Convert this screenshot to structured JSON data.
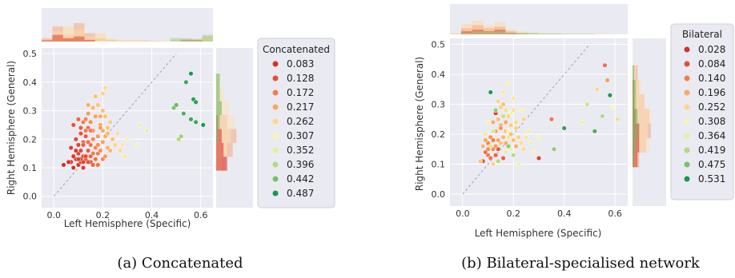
{
  "chart_data": [
    {
      "type": "scatter",
      "xlabel": "Left Hemisphere (Specific)",
      "ylabel": "Right Hemisphere (General)",
      "xlim": [
        -0.05,
        0.65
      ],
      "ylim": [
        -0.04,
        0.52
      ],
      "xticks": [
        "0.0",
        "0.2",
        "0.4",
        "0.6"
      ],
      "yticks": [
        "0.0",
        "0.1",
        "0.2",
        "0.3",
        "0.4",
        "0.5"
      ],
      "xtick_values": [
        0,
        0.2,
        0.4,
        0.6
      ],
      "ytick_values": [
        0,
        0.1,
        0.2,
        0.3,
        0.4,
        0.5
      ],
      "diagonal": [
        [
          0,
          0
        ],
        [
          0.5,
          0.5
        ]
      ],
      "legend_title": "Concatenated",
      "legend_labels": [
        "0.083",
        "0.128",
        "0.172",
        "0.217",
        "0.262",
        "0.307",
        "0.352",
        "0.396",
        "0.442",
        "0.487"
      ],
      "legend_colors": [
        "#d73027",
        "#e44f35",
        "#f47d4a",
        "#fbaa5d",
        "#fdd884",
        "#f9f5b0",
        "#e2f09a",
        "#b2db7c",
        "#73c264",
        "#1a9850"
      ],
      "caption": "(a) Concatenated",
      "points": [
        [
          0.04,
          0.11,
          0.083
        ],
        [
          0.07,
          0.12,
          0.09
        ],
        [
          0.08,
          0.1,
          0.083
        ],
        [
          0.09,
          0.13,
          0.1
        ],
        [
          0.1,
          0.15,
          0.11
        ],
        [
          0.1,
          0.11,
          0.09
        ],
        [
          0.11,
          0.12,
          0.1
        ],
        [
          0.12,
          0.14,
          0.12
        ],
        [
          0.12,
          0.1,
          0.1
        ],
        [
          0.13,
          0.13,
          0.13
        ],
        [
          0.14,
          0.16,
          0.14
        ],
        [
          0.15,
          0.12,
          0.12
        ],
        [
          0.09,
          0.2,
          0.12
        ],
        [
          0.1,
          0.18,
          0.11
        ],
        [
          0.11,
          0.22,
          0.13
        ],
        [
          0.12,
          0.19,
          0.15
        ],
        [
          0.13,
          0.21,
          0.14
        ],
        [
          0.14,
          0.24,
          0.16
        ],
        [
          0.15,
          0.18,
          0.16
        ],
        [
          0.16,
          0.2,
          0.18
        ],
        [
          0.08,
          0.25,
          0.13
        ],
        [
          0.1,
          0.27,
          0.15
        ],
        [
          0.12,
          0.26,
          0.17
        ],
        [
          0.13,
          0.23,
          0.17
        ],
        [
          0.15,
          0.26,
          0.19
        ],
        [
          0.16,
          0.23,
          0.19
        ],
        [
          0.17,
          0.17,
          0.18
        ],
        [
          0.18,
          0.21,
          0.2
        ],
        [
          0.18,
          0.15,
          0.17
        ],
        [
          0.19,
          0.25,
          0.21
        ],
        [
          0.2,
          0.19,
          0.21
        ],
        [
          0.2,
          0.13,
          0.18
        ],
        [
          0.17,
          0.13,
          0.16
        ],
        [
          0.16,
          0.11,
          0.15
        ],
        [
          0.18,
          0.11,
          0.16
        ],
        [
          0.21,
          0.14,
          0.2
        ],
        [
          0.22,
          0.17,
          0.22
        ],
        [
          0.19,
          0.28,
          0.22
        ],
        [
          0.21,
          0.28,
          0.24
        ],
        [
          0.18,
          0.32,
          0.24
        ],
        [
          0.16,
          0.31,
          0.23
        ],
        [
          0.2,
          0.36,
          0.26
        ],
        [
          0.21,
          0.38,
          0.27
        ],
        [
          0.14,
          0.32,
          0.22
        ],
        [
          0.17,
          0.35,
          0.24
        ],
        [
          0.22,
          0.22,
          0.23
        ],
        [
          0.23,
          0.26,
          0.25
        ],
        [
          0.24,
          0.2,
          0.24
        ],
        [
          0.11,
          0.13,
          0.11
        ],
        [
          0.13,
          0.14,
          0.12
        ],
        [
          0.14,
          0.12,
          0.13
        ],
        [
          0.12,
          0.18,
          0.14
        ],
        [
          0.11,
          0.24,
          0.14
        ],
        [
          0.14,
          0.19,
          0.16
        ],
        [
          0.16,
          0.15,
          0.17
        ],
        [
          0.15,
          0.14,
          0.15
        ],
        [
          0.18,
          0.18,
          0.19
        ],
        [
          0.19,
          0.16,
          0.19
        ],
        [
          0.2,
          0.23,
          0.22
        ],
        [
          0.13,
          0.27,
          0.18
        ],
        [
          0.14,
          0.29,
          0.2
        ],
        [
          0.23,
          0.16,
          0.23
        ],
        [
          0.25,
          0.18,
          0.26
        ],
        [
          0.26,
          0.22,
          0.27
        ],
        [
          0.27,
          0.16,
          0.27
        ],
        [
          0.29,
          0.14,
          0.28
        ],
        [
          0.28,
          0.18,
          0.29
        ],
        [
          0.3,
          0.2,
          0.3
        ],
        [
          0.34,
          0.18,
          0.32
        ],
        [
          0.35,
          0.25,
          0.33
        ],
        [
          0.38,
          0.23,
          0.34
        ],
        [
          0.09,
          0.16,
          0.1
        ],
        [
          0.1,
          0.13,
          0.1
        ],
        [
          0.12,
          0.12,
          0.11
        ],
        [
          0.08,
          0.14,
          0.09
        ],
        [
          0.07,
          0.17,
          0.1
        ],
        [
          0.11,
          0.16,
          0.12
        ],
        [
          0.06,
          0.12,
          0.09
        ],
        [
          0.17,
          0.28,
          0.21
        ],
        [
          0.2,
          0.3,
          0.24
        ],
        [
          0.15,
          0.23,
          0.17
        ],
        [
          0.19,
          0.24,
          0.2
        ],
        [
          0.21,
          0.21,
          0.22
        ],
        [
          0.22,
          0.24,
          0.24
        ],
        [
          0.49,
          0.31,
          0.44
        ],
        [
          0.5,
          0.32,
          0.45
        ],
        [
          0.51,
          0.2,
          0.4
        ],
        [
          0.52,
          0.21,
          0.41
        ],
        [
          0.53,
          0.29,
          0.46
        ],
        [
          0.54,
          0.4,
          0.47
        ],
        [
          0.56,
          0.43,
          0.49
        ],
        [
          0.57,
          0.34,
          0.48
        ],
        [
          0.58,
          0.33,
          0.48
        ],
        [
          0.56,
          0.27,
          0.47
        ],
        [
          0.58,
          0.26,
          0.47
        ],
        [
          0.61,
          0.25,
          0.487
        ]
      ],
      "top_hist": [
        {
          "values": [
            0.1,
            0.45,
            0.2,
            0.55,
            0.25,
            0.1,
            0.05,
            0.02,
            0.02,
            0.03,
            0.02,
            0.0,
            0.04,
            0.07,
            0.04,
            0.15
          ],
          "color": "#f7aa7d"
        },
        {
          "values": [
            0.05,
            0.3,
            0.45,
            0.35,
            0.15,
            0.25,
            0.08,
            0.05,
            0.05,
            0.02,
            0.02,
            0.02,
            0.02,
            0.05,
            0.06,
            0.1
          ],
          "color": "#fdd9a0"
        },
        {
          "values": [
            0.04,
            0.2,
            0.1,
            0.15,
            0.05,
            0.0,
            0.0,
            0.0,
            0.0,
            0.0,
            0.0,
            0.0,
            0.0,
            0.05,
            0.05,
            0.0
          ],
          "color": "#d9452f"
        },
        {
          "values": [
            0.0,
            0.0,
            0.0,
            0.0,
            0.0,
            0.0,
            0.0,
            0.0,
            0.0,
            0.0,
            0.0,
            0.0,
            0.1,
            0.1,
            0.08,
            0.2
          ],
          "color": "#9fd38a"
        }
      ],
      "right_hist": [
        {
          "values": [
            0.25,
            0.45,
            0.55,
            0.3,
            0.15,
            0.05,
            0.05
          ],
          "color": "#f4a582"
        },
        {
          "values": [
            0.15,
            0.3,
            0.4,
            0.5,
            0.35,
            0.2,
            0.1
          ],
          "color": "#fee0b6"
        },
        {
          "values": [
            0.3,
            0.2,
            0.15,
            0.05,
            0.0,
            0.0,
            0.0
          ],
          "color": "#d73027"
        },
        {
          "values": [
            0.0,
            0.0,
            0.05,
            0.1,
            0.15,
            0.1,
            0.1
          ],
          "color": "#66bd63"
        }
      ]
    },
    {
      "type": "scatter",
      "xlabel": "Left Hemisphere (Specific)",
      "ylabel": "Right Hemisphere (General)",
      "xlim": [
        -0.05,
        0.65
      ],
      "ylim": [
        -0.04,
        0.52
      ],
      "xticks": [
        "0.0",
        "0.2",
        "0.4",
        "0.6"
      ],
      "yticks": [
        "0.0",
        "0.1",
        "0.2",
        "0.3",
        "0.4",
        "0.5"
      ],
      "xtick_values": [
        0,
        0.2,
        0.4,
        0.6
      ],
      "ytick_values": [
        0,
        0.1,
        0.2,
        0.3,
        0.4,
        0.5
      ],
      "diagonal": [
        [
          0,
          0
        ],
        [
          0.5,
          0.5
        ]
      ],
      "legend_title": "Bilateral",
      "legend_labels": [
        "0.028",
        "0.084",
        "0.140",
        "0.196",
        "0.252",
        "0.308",
        "0.364",
        "0.419",
        "0.475",
        "0.531"
      ],
      "legend_colors": [
        "#d73027",
        "#e44f35",
        "#f47d4a",
        "#fbaa5d",
        "#fdd884",
        "#f9f5b0",
        "#e2f09a",
        "#b2db7c",
        "#73c264",
        "#1a9850"
      ],
      "caption": "(b) Bilateral-specialised network",
      "points": [
        [
          0.08,
          0.11,
          0.08
        ],
        [
          0.09,
          0.14,
          0.12
        ],
        [
          0.1,
          0.17,
          0.15
        ],
        [
          0.1,
          0.13,
          0.14
        ],
        [
          0.11,
          0.19,
          0.17
        ],
        [
          0.12,
          0.24,
          0.2
        ],
        [
          0.12,
          0.15,
          0.16
        ],
        [
          0.13,
          0.27,
          0.06
        ],
        [
          0.13,
          0.21,
          0.18
        ],
        [
          0.14,
          0.25,
          0.22
        ],
        [
          0.14,
          0.18,
          0.19
        ],
        [
          0.15,
          0.29,
          0.24
        ],
        [
          0.15,
          0.23,
          0.2
        ],
        [
          0.16,
          0.34,
          0.28
        ],
        [
          0.16,
          0.19,
          0.21
        ],
        [
          0.17,
          0.28,
          0.26
        ],
        [
          0.17,
          0.21,
          0.22
        ],
        [
          0.18,
          0.37,
          0.3
        ],
        [
          0.18,
          0.26,
          0.25
        ],
        [
          0.19,
          0.23,
          0.24
        ],
        [
          0.19,
          0.15,
          0.35
        ],
        [
          0.2,
          0.32,
          0.28
        ],
        [
          0.2,
          0.18,
          0.22
        ],
        [
          0.21,
          0.24,
          0.26
        ],
        [
          0.22,
          0.19,
          0.24
        ],
        [
          0.23,
          0.28,
          0.3
        ],
        [
          0.24,
          0.15,
          0.26
        ],
        [
          0.26,
          0.21,
          0.29
        ],
        [
          0.28,
          0.14,
          0.3
        ],
        [
          0.3,
          0.12,
          0.05
        ],
        [
          0.11,
          0.34,
          0.53
        ],
        [
          0.13,
          0.28,
          0.45
        ],
        [
          0.16,
          0.26,
          0.4
        ],
        [
          0.12,
          0.21,
          0.38
        ],
        [
          0.14,
          0.11,
          0.42
        ],
        [
          0.17,
          0.14,
          0.36
        ],
        [
          0.18,
          0.16,
          0.46
        ],
        [
          0.2,
          0.13,
          0.41
        ],
        [
          0.22,
          0.1,
          0.33
        ],
        [
          0.1,
          0.24,
          0.3
        ],
        [
          0.09,
          0.2,
          0.28
        ],
        [
          0.11,
          0.16,
          0.26
        ],
        [
          0.12,
          0.1,
          0.25
        ],
        [
          0.15,
          0.17,
          0.23
        ],
        [
          0.18,
          0.21,
          0.31
        ],
        [
          0.19,
          0.27,
          0.33
        ],
        [
          0.21,
          0.16,
          0.2
        ],
        [
          0.24,
          0.25,
          0.25
        ],
        [
          0.16,
          0.12,
          0.1
        ],
        [
          0.14,
          0.15,
          0.09
        ],
        [
          0.13,
          0.13,
          0.11
        ],
        [
          0.11,
          0.12,
          0.13
        ],
        [
          0.1,
          0.15,
          0.16
        ],
        [
          0.09,
          0.18,
          0.19
        ],
        [
          0.08,
          0.16,
          0.21
        ],
        [
          0.07,
          0.11,
          0.23
        ],
        [
          0.12,
          0.18,
          0.14
        ],
        [
          0.15,
          0.22,
          0.17
        ],
        [
          0.17,
          0.24,
          0.19
        ],
        [
          0.18,
          0.19,
          0.27
        ],
        [
          0.27,
          0.17,
          0.34
        ],
        [
          0.3,
          0.19,
          0.32
        ],
        [
          0.35,
          0.25,
          0.13
        ],
        [
          0.36,
          0.15,
          0.45
        ],
        [
          0.4,
          0.22,
          0.52
        ],
        [
          0.47,
          0.24,
          0.35
        ],
        [
          0.49,
          0.3,
          0.39
        ],
        [
          0.52,
          0.21,
          0.5
        ],
        [
          0.55,
          0.26,
          0.42
        ],
        [
          0.56,
          0.43,
          0.12
        ],
        [
          0.57,
          0.38,
          0.18
        ],
        [
          0.58,
          0.33,
          0.53
        ],
        [
          0.59,
          0.29,
          0.31
        ],
        [
          0.61,
          0.25,
          0.26
        ],
        [
          0.53,
          0.35,
          0.25
        ],
        [
          0.16,
          0.3,
          0.22
        ],
        [
          0.14,
          0.31,
          0.25
        ],
        [
          0.2,
          0.28,
          0.27
        ],
        [
          0.13,
          0.16,
          0.18
        ],
        [
          0.17,
          0.17,
          0.2
        ],
        [
          0.19,
          0.2,
          0.22
        ],
        [
          0.21,
          0.22,
          0.24
        ],
        [
          0.23,
          0.17,
          0.26
        ],
        [
          0.25,
          0.19,
          0.28
        ]
      ],
      "top_hist": [
        {
          "values": [
            0.03,
            0.35,
            0.45,
            0.3,
            0.4,
            0.15,
            0.1,
            0.05,
            0.03,
            0.03,
            0.02,
            0.02,
            0.02,
            0.03,
            0.0,
            0.0
          ],
          "color": "#fdd9a0"
        },
        {
          "values": [
            0.02,
            0.2,
            0.3,
            0.2,
            0.25,
            0.1,
            0.05,
            0.03,
            0.02,
            0.02,
            0.0,
            0.0,
            0.0,
            0.0,
            0.0,
            0.0
          ],
          "color": "#f7aa7d"
        },
        {
          "values": [
            0.0,
            0.1,
            0.15,
            0.1,
            0.15,
            0.05,
            0.02,
            0.0,
            0.0,
            0.0,
            0.0,
            0.0,
            0.0,
            0.0,
            0.0,
            0.0
          ],
          "color": "#d9452f"
        },
        {
          "values": [
            0.0,
            0.05,
            0.1,
            0.08,
            0.1,
            0.05,
            0.05,
            0.05,
            0.03,
            0.03,
            0.02,
            0.02,
            0.02,
            0.0,
            0.0,
            0.0
          ],
          "color": "#9fd38a"
        }
      ],
      "right_hist": [
        {
          "values": [
            0.2,
            0.4,
            0.55,
            0.5,
            0.35,
            0.2,
            0.15
          ],
          "color": "#f4a582"
        },
        {
          "values": [
            0.15,
            0.5,
            0.45,
            0.55,
            0.35,
            0.25,
            0.1
          ],
          "color": "#fee0b6"
        },
        {
          "values": [
            0.15,
            0.2,
            0.2,
            0.1,
            0.05,
            0.05,
            0.0
          ],
          "color": "#d73027"
        },
        {
          "values": [
            0.05,
            0.1,
            0.15,
            0.15,
            0.1,
            0.1,
            0.05
          ],
          "color": "#66bd63"
        }
      ]
    }
  ]
}
